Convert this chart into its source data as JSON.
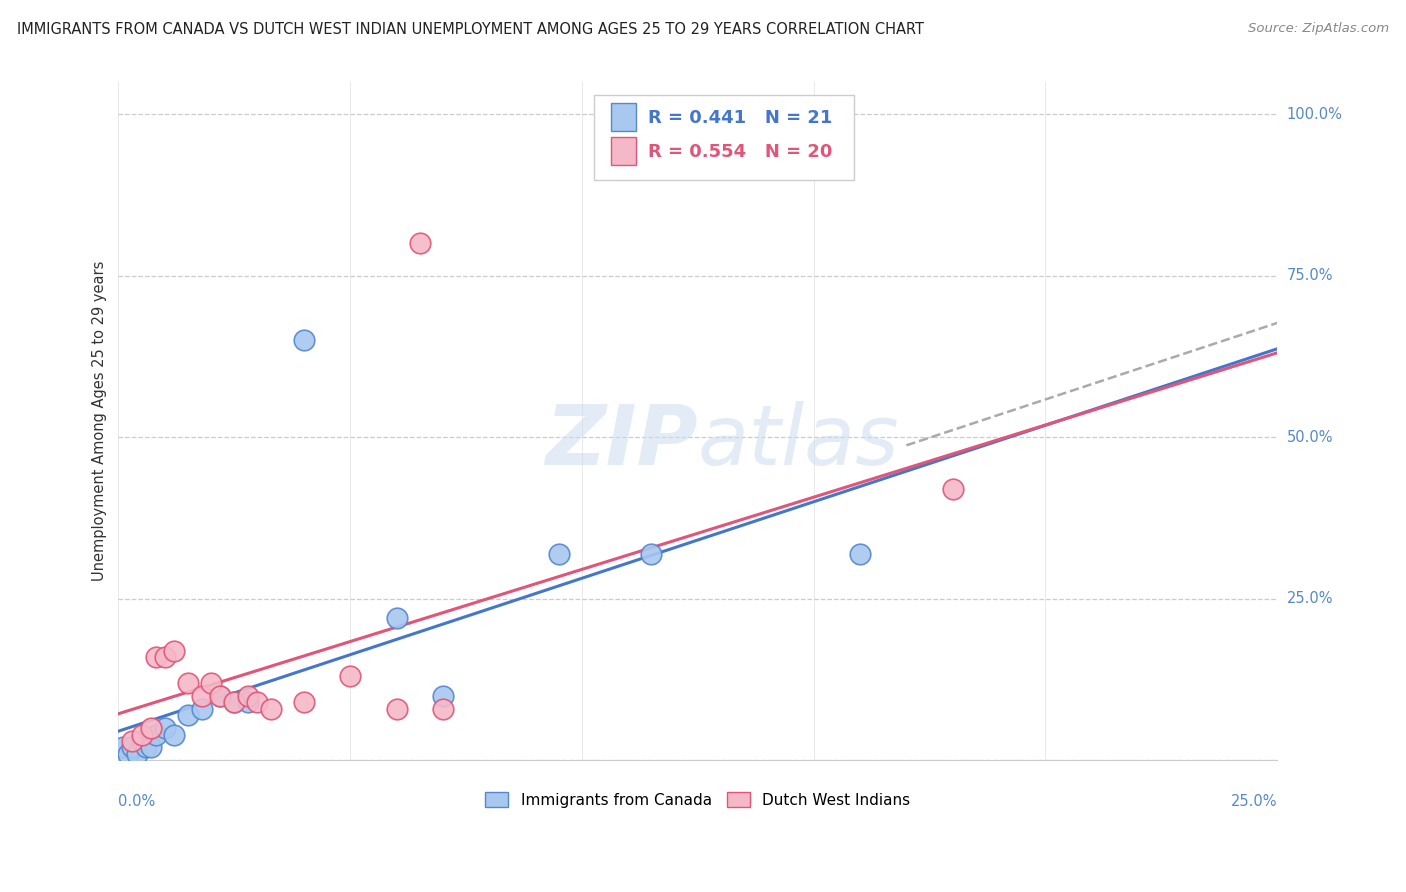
{
  "title": "IMMIGRANTS FROM CANADA VS DUTCH WEST INDIAN UNEMPLOYMENT AMONG AGES 25 TO 29 YEARS CORRELATION CHART",
  "source": "Source: ZipAtlas.com",
  "ylabel": "Unemployment Among Ages 25 to 29 years",
  "xlim": [
    0.0,
    0.25
  ],
  "ylim": [
    0.0,
    1.05
  ],
  "canada_pts": [
    [
      0.001,
      0.02
    ],
    [
      0.002,
      0.01
    ],
    [
      0.003,
      0.02
    ],
    [
      0.004,
      0.01
    ],
    [
      0.005,
      0.03
    ],
    [
      0.006,
      0.02
    ],
    [
      0.007,
      0.02
    ],
    [
      0.008,
      0.04
    ],
    [
      0.01,
      0.05
    ],
    [
      0.012,
      0.04
    ],
    [
      0.015,
      0.07
    ],
    [
      0.018,
      0.08
    ],
    [
      0.022,
      0.1
    ],
    [
      0.025,
      0.09
    ],
    [
      0.028,
      0.09
    ],
    [
      0.06,
      0.22
    ],
    [
      0.07,
      0.1
    ],
    [
      0.095,
      0.32
    ],
    [
      0.115,
      0.32
    ],
    [
      0.16,
      0.32
    ],
    [
      0.04,
      0.65
    ]
  ],
  "dutch_pts": [
    [
      0.003,
      0.03
    ],
    [
      0.005,
      0.04
    ],
    [
      0.007,
      0.05
    ],
    [
      0.008,
      0.16
    ],
    [
      0.01,
      0.16
    ],
    [
      0.012,
      0.17
    ],
    [
      0.015,
      0.12
    ],
    [
      0.018,
      0.1
    ],
    [
      0.02,
      0.12
    ],
    [
      0.022,
      0.1
    ],
    [
      0.025,
      0.09
    ],
    [
      0.028,
      0.1
    ],
    [
      0.03,
      0.09
    ],
    [
      0.033,
      0.08
    ],
    [
      0.04,
      0.09
    ],
    [
      0.05,
      0.13
    ],
    [
      0.06,
      0.08
    ],
    [
      0.07,
      0.08
    ],
    [
      0.18,
      0.42
    ],
    [
      0.065,
      0.8
    ]
  ],
  "canada_color": "#a8c8f0",
  "dutch_color": "#f5b8c8",
  "canada_edge_color": "#5588cc",
  "dutch_edge_color": "#e05578",
  "canada_line_color": "#4477cc",
  "dutch_line_color": "#e05578",
  "watermark_color": "#ddeeff",
  "axis_label_color": "#5588cc",
  "legend_r_canada": "0.441",
  "legend_n_canada": "21",
  "legend_r_dutch": "0.554",
  "legend_n_dutch": "20"
}
